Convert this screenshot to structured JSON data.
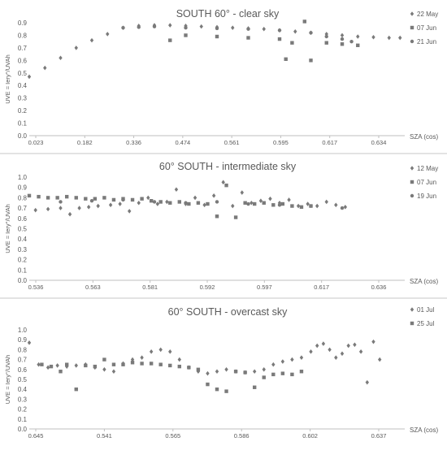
{
  "chart_data": [
    {
      "type": "scatter",
      "title": "SOUTH 60° - clear sky",
      "xlabel": "SZA (cos)",
      "ylabel": "UVE = Iery°/UVAh",
      "ylim": [
        0,
        0.9
      ],
      "yticks": [
        "0.0",
        "0.1",
        "0.2",
        "0.3",
        "0.4",
        "0.5",
        "0.6",
        "0.7",
        "0.8",
        "0.9"
      ],
      "xtick_labels": [
        "0.023",
        "0.182",
        "0.336",
        "0.474",
        "0.561",
        "0.595",
        "0.617",
        "0.634"
      ],
      "legend_position": "right",
      "grid": false,
      "series": [
        {
          "name": "22 May",
          "marker": "diamond",
          "color": "#7a7a7a",
          "points": [
            [
              0,
              0.47
            ],
            [
              0.5,
              0.54
            ],
            [
              1,
              0.62
            ],
            [
              1.5,
              0.7
            ],
            [
              2,
              0.76
            ],
            [
              2.5,
              0.81
            ],
            [
              3,
              0.86
            ],
            [
              3.5,
              0.875
            ],
            [
              4,
              0.88
            ],
            [
              4.5,
              0.88
            ],
            [
              5,
              0.875
            ],
            [
              5.5,
              0.87
            ],
            [
              6,
              0.865
            ],
            [
              6.5,
              0.86
            ],
            [
              7,
              0.855
            ],
            [
              7.5,
              0.85
            ],
            [
              8,
              0.84
            ],
            [
              8.5,
              0.83
            ],
            [
              9,
              0.82
            ],
            [
              9.5,
              0.81
            ],
            [
              10,
              0.8
            ],
            [
              10.5,
              0.79
            ],
            [
              11,
              0.785
            ],
            [
              11.5,
              0.78
            ],
            [
              11.85,
              0.78
            ]
          ]
        },
        {
          "name": "07 Jun",
          "marker": "square",
          "color": "#7a7a7a",
          "points": [
            [
              4.5,
              0.76
            ],
            [
              5,
              0.8
            ],
            [
              6,
              0.79
            ],
            [
              7,
              0.78
            ],
            [
              8,
              0.77
            ],
            [
              8.2,
              0.61
            ],
            [
              8.4,
              0.74
            ],
            [
              8.8,
              0.91
            ],
            [
              9,
              0.6
            ],
            [
              9.5,
              0.74
            ],
            [
              10,
              0.73
            ],
            [
              10.5,
              0.72
            ]
          ]
        },
        {
          "name": "21 Jun",
          "marker": "circle",
          "color": "#7a7a7a",
          "points": [
            [
              3,
              0.86
            ],
            [
              3.5,
              0.865
            ],
            [
              4,
              0.87
            ],
            [
              5,
              0.86
            ],
            [
              6,
              0.855
            ],
            [
              7,
              0.85
            ],
            [
              8,
              0.84
            ],
            [
              9,
              0.82
            ],
            [
              9.5,
              0.79
            ],
            [
              10,
              0.77
            ],
            [
              10.3,
              0.75
            ]
          ]
        }
      ]
    },
    {
      "type": "scatter",
      "title": "60° SOUTH - intermediate sky",
      "xlabel": "SZA (cos)",
      "ylabel": "UVE = Iery°/UVAh",
      "ylim": [
        0,
        1.0
      ],
      "yticks": [
        "0.0",
        "0.1",
        "0.2",
        "0.3",
        "0.4",
        "0.5",
        "0.6",
        "0.7",
        "0.8",
        "0.9",
        "1.0"
      ],
      "xtick_labels": [
        "0.536",
        "0.563",
        "0.581",
        "0.592",
        "0.597",
        "0.617",
        "0.636"
      ],
      "legend_position": "right",
      "grid": false,
      "series": [
        {
          "name": "12 May",
          "marker": "diamond",
          "color": "#7a7a7a",
          "points": [
            [
              0.2,
              0.68
            ],
            [
              0.6,
              0.69
            ],
            [
              1.0,
              0.7
            ],
            [
              1.3,
              0.64
            ],
            [
              1.6,
              0.7
            ],
            [
              1.9,
              0.71
            ],
            [
              2.2,
              0.72
            ],
            [
              2.6,
              0.73
            ],
            [
              2.9,
              0.74
            ],
            [
              3.2,
              0.67
            ],
            [
              3.5,
              0.75
            ],
            [
              3.8,
              0.8
            ],
            [
              4.1,
              0.74
            ],
            [
              4.4,
              0.76
            ],
            [
              4.7,
              0.88
            ],
            [
              5.0,
              0.74
            ],
            [
              5.3,
              0.8
            ],
            [
              5.6,
              0.73
            ],
            [
              5.9,
              0.82
            ],
            [
              6.2,
              0.95
            ],
            [
              6.5,
              0.72
            ],
            [
              6.8,
              0.85
            ],
            [
              7.1,
              0.75
            ],
            [
              7.4,
              0.77
            ],
            [
              7.7,
              0.79
            ],
            [
              8.0,
              0.75
            ],
            [
              8.3,
              0.78
            ],
            [
              8.6,
              0.72
            ],
            [
              8.9,
              0.74
            ],
            [
              9.2,
              0.72
            ],
            [
              9.5,
              0.76
            ],
            [
              9.8,
              0.73
            ],
            [
              10.1,
              0.71
            ]
          ]
        },
        {
          "name": "07 Jun",
          "marker": "square",
          "color": "#7a7a7a",
          "points": [
            [
              0,
              0.82
            ],
            [
              0.3,
              0.81
            ],
            [
              0.6,
              0.8
            ],
            [
              0.9,
              0.8
            ],
            [
              1.2,
              0.81
            ],
            [
              1.5,
              0.8
            ],
            [
              1.8,
              0.79
            ],
            [
              2.1,
              0.79
            ],
            [
              2.4,
              0.8
            ],
            [
              2.7,
              0.78
            ],
            [
              3.0,
              0.79
            ],
            [
              3.3,
              0.78
            ],
            [
              3.6,
              0.79
            ],
            [
              3.9,
              0.77
            ],
            [
              4.2,
              0.76
            ],
            [
              4.5,
              0.75
            ],
            [
              4.8,
              0.76
            ],
            [
              5.1,
              0.74
            ],
            [
              5.4,
              0.75
            ],
            [
              5.7,
              0.74
            ],
            [
              6.0,
              0.62
            ],
            [
              6.3,
              0.92
            ],
            [
              6.6,
              0.61
            ],
            [
              6.9,
              0.75
            ],
            [
              7.2,
              0.74
            ],
            [
              7.5,
              0.75
            ],
            [
              7.8,
              0.73
            ],
            [
              8.1,
              0.74
            ],
            [
              8.4,
              0.72
            ],
            [
              8.7,
              0.71
            ],
            [
              9.0,
              0.72
            ]
          ]
        },
        {
          "name": "19 Jun",
          "marker": "circle",
          "color": "#7a7a7a",
          "points": [
            [
              1.0,
              0.76
            ],
            [
              2.0,
              0.77
            ],
            [
              3.0,
              0.78
            ],
            [
              4.0,
              0.76
            ],
            [
              5.0,
              0.75
            ],
            [
              6.0,
              0.76
            ],
            [
              7.0,
              0.74
            ],
            [
              8.0,
              0.73
            ],
            [
              9.0,
              0.72
            ],
            [
              10.0,
              0.7
            ]
          ]
        }
      ]
    },
    {
      "type": "scatter",
      "title": "60° SOUTH - overcast sky",
      "xlabel": "SZA (cos)",
      "ylabel": "UVE = Iery°/UVAh",
      "ylim": [
        0,
        1.0
      ],
      "yticks": [
        "0.0",
        "0.1",
        "0.2",
        "0.3",
        "0.4",
        "0.5",
        "0.6",
        "0.7",
        "0.8",
        "0.9",
        "1.0"
      ],
      "xtick_labels": [
        "0.645",
        "0.541",
        "0.565",
        "0.586",
        "0.602",
        "0.637"
      ],
      "legend_position": "right",
      "grid": false,
      "series": [
        {
          "name": "01 Jul",
          "marker": "diamond",
          "color": "#7a7a7a",
          "points": [
            [
              0,
              0.87
            ],
            [
              0.3,
              0.65
            ],
            [
              0.6,
              0.62
            ],
            [
              0.9,
              0.64
            ],
            [
              1.2,
              0.63
            ],
            [
              1.5,
              0.64
            ],
            [
              1.8,
              0.65
            ],
            [
              2.1,
              0.62
            ],
            [
              2.4,
              0.6
            ],
            [
              2.7,
              0.58
            ],
            [
              3.0,
              0.66
            ],
            [
              3.3,
              0.7
            ],
            [
              3.6,
              0.72
            ],
            [
              3.9,
              0.78
            ],
            [
              4.2,
              0.8
            ],
            [
              4.5,
              0.78
            ],
            [
              4.8,
              0.7
            ],
            [
              5.1,
              0.62
            ],
            [
              5.4,
              0.58
            ],
            [
              5.7,
              0.56
            ],
            [
              6.0,
              0.58
            ],
            [
              6.3,
              0.6
            ],
            [
              6.6,
              0.58
            ],
            [
              6.9,
              0.57
            ],
            [
              7.2,
              0.58
            ],
            [
              7.5,
              0.6
            ],
            [
              7.8,
              0.65
            ],
            [
              8.1,
              0.68
            ],
            [
              8.4,
              0.7
            ],
            [
              8.7,
              0.72
            ],
            [
              9.0,
              0.78
            ],
            [
              9.2,
              0.84
            ],
            [
              9.4,
              0.86
            ],
            [
              9.6,
              0.8
            ],
            [
              9.8,
              0.72
            ],
            [
              10.0,
              0.76
            ],
            [
              10.2,
              0.84
            ],
            [
              10.4,
              0.85
            ],
            [
              10.6,
              0.78
            ],
            [
              10.8,
              0.47
            ],
            [
              11.0,
              0.88
            ],
            [
              11.2,
              0.7
            ]
          ]
        },
        {
          "name": "25 Jul",
          "marker": "square",
          "color": "#7a7a7a",
          "points": [
            [
              0.4,
              0.65
            ],
            [
              0.7,
              0.63
            ],
            [
              1.0,
              0.58
            ],
            [
              1.2,
              0.65
            ],
            [
              1.5,
              0.4
            ],
            [
              1.8,
              0.64
            ],
            [
              2.1,
              0.63
            ],
            [
              2.4,
              0.7
            ],
            [
              2.7,
              0.65
            ],
            [
              3.0,
              0.65
            ],
            [
              3.3,
              0.67
            ],
            [
              3.6,
              0.66
            ],
            [
              3.9,
              0.66
            ],
            [
              4.2,
              0.65
            ],
            [
              4.5,
              0.64
            ],
            [
              4.8,
              0.63
            ],
            [
              5.1,
              0.62
            ],
            [
              5.4,
              0.6
            ],
            [
              5.7,
              0.45
            ],
            [
              6.0,
              0.4
            ],
            [
              6.3,
              0.38
            ],
            [
              6.6,
              0.58
            ],
            [
              6.9,
              0.57
            ],
            [
              7.2,
              0.42
            ],
            [
              7.5,
              0.52
            ],
            [
              7.8,
              0.55
            ],
            [
              8.1,
              0.56
            ],
            [
              8.4,
              0.55
            ],
            [
              8.7,
              0.58
            ]
          ]
        }
      ]
    }
  ]
}
